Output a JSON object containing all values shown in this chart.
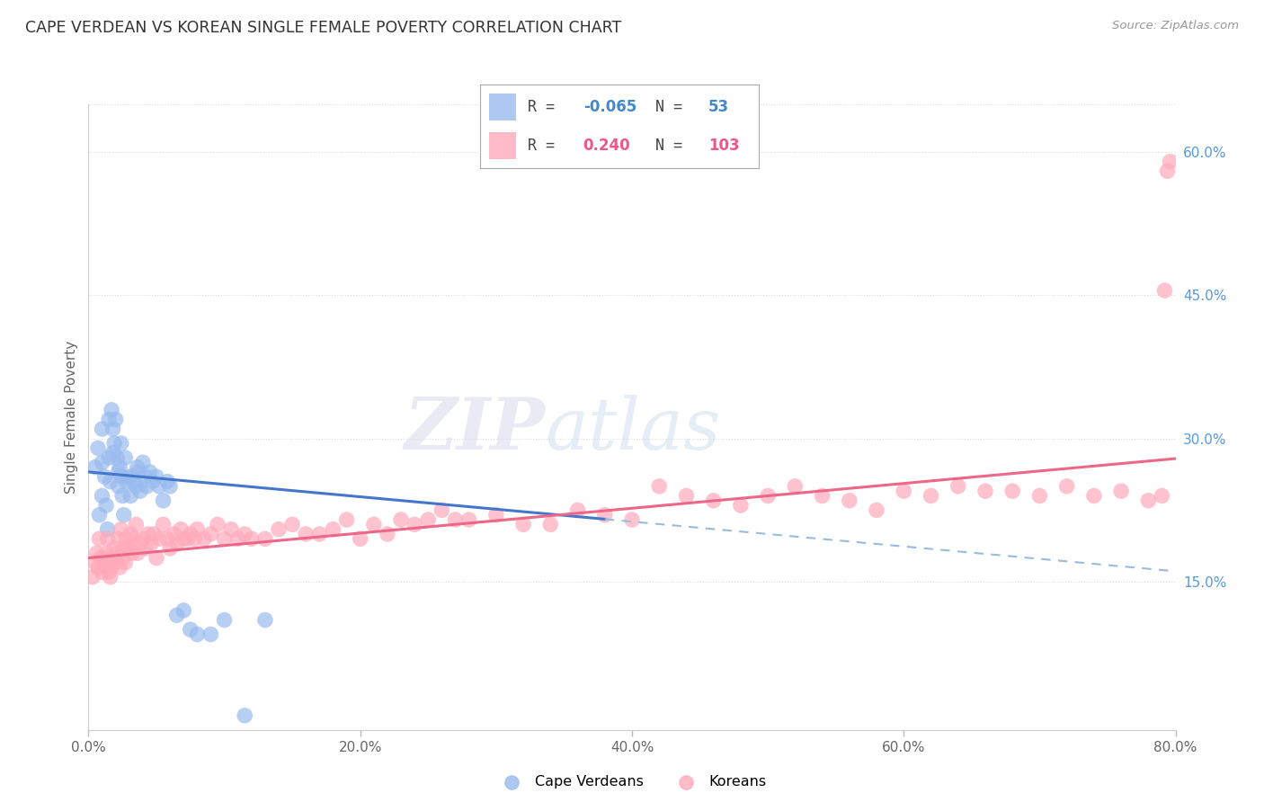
{
  "title": "CAPE VERDEAN VS KOREAN SINGLE FEMALE POVERTY CORRELATION CHART",
  "source": "Source: ZipAtlas.com",
  "ylabel": "Single Female Poverty",
  "xlim": [
    0.0,
    0.8
  ],
  "ylim": [
    -0.005,
    0.65
  ],
  "xticks": [
    0.0,
    0.2,
    0.4,
    0.6,
    0.8
  ],
  "xtick_labels": [
    "0.0%",
    "20.0%",
    "40.0%",
    "60.0%",
    "80.0%"
  ],
  "yticks_right": [
    0.15,
    0.3,
    0.45,
    0.6
  ],
  "ytick_right_labels": [
    "15.0%",
    "30.0%",
    "45.0%",
    "60.0%"
  ],
  "blue_color": "#99BBEE",
  "pink_color": "#FFAABB",
  "trend_blue_solid": "#4477CC",
  "trend_blue_dash": "#99BBDD",
  "trend_pink": "#EE6688",
  "watermark_zip": "ZIP",
  "watermark_atlas": "atlas",
  "cape_verdean_x": [
    0.005,
    0.007,
    0.008,
    0.01,
    0.01,
    0.01,
    0.012,
    0.013,
    0.014,
    0.015,
    0.015,
    0.016,
    0.017,
    0.018,
    0.018,
    0.019,
    0.02,
    0.021,
    0.022,
    0.022,
    0.023,
    0.024,
    0.025,
    0.025,
    0.026,
    0.027,
    0.028,
    0.03,
    0.031,
    0.032,
    0.033,
    0.035,
    0.036,
    0.037,
    0.038,
    0.04,
    0.042,
    0.043,
    0.045,
    0.047,
    0.05,
    0.052,
    0.055,
    0.058,
    0.06,
    0.065,
    0.07,
    0.075,
    0.08,
    0.09,
    0.1,
    0.115,
    0.13
  ],
  "cape_verdean_y": [
    0.27,
    0.29,
    0.22,
    0.24,
    0.31,
    0.275,
    0.26,
    0.23,
    0.205,
    0.32,
    0.28,
    0.255,
    0.33,
    0.285,
    0.31,
    0.295,
    0.32,
    0.28,
    0.265,
    0.25,
    0.27,
    0.295,
    0.26,
    0.24,
    0.22,
    0.28,
    0.255,
    0.26,
    0.24,
    0.26,
    0.255,
    0.25,
    0.27,
    0.265,
    0.245,
    0.275,
    0.26,
    0.25,
    0.265,
    0.255,
    0.26,
    0.25,
    0.235,
    0.255,
    0.25,
    0.115,
    0.12,
    0.1,
    0.095,
    0.095,
    0.11,
    0.01,
    0.11
  ],
  "korean_x": [
    0.003,
    0.005,
    0.006,
    0.007,
    0.008,
    0.009,
    0.01,
    0.011,
    0.012,
    0.013,
    0.014,
    0.015,
    0.016,
    0.017,
    0.018,
    0.019,
    0.02,
    0.021,
    0.022,
    0.023,
    0.024,
    0.025,
    0.026,
    0.027,
    0.028,
    0.03,
    0.031,
    0.032,
    0.033,
    0.035,
    0.036,
    0.038,
    0.04,
    0.042,
    0.044,
    0.046,
    0.048,
    0.05,
    0.052,
    0.055,
    0.058,
    0.06,
    0.063,
    0.065,
    0.068,
    0.07,
    0.073,
    0.075,
    0.078,
    0.08,
    0.085,
    0.09,
    0.095,
    0.1,
    0.105,
    0.11,
    0.115,
    0.12,
    0.13,
    0.14,
    0.15,
    0.16,
    0.17,
    0.18,
    0.19,
    0.2,
    0.21,
    0.22,
    0.23,
    0.24,
    0.25,
    0.26,
    0.27,
    0.28,
    0.3,
    0.32,
    0.34,
    0.36,
    0.38,
    0.4,
    0.42,
    0.44,
    0.46,
    0.48,
    0.5,
    0.52,
    0.54,
    0.56,
    0.58,
    0.6,
    0.62,
    0.64,
    0.66,
    0.68,
    0.7,
    0.72,
    0.74,
    0.76,
    0.78,
    0.79,
    0.792,
    0.794,
    0.796
  ],
  "korean_y": [
    0.155,
    0.17,
    0.18,
    0.165,
    0.195,
    0.175,
    0.16,
    0.175,
    0.165,
    0.18,
    0.195,
    0.16,
    0.155,
    0.165,
    0.175,
    0.185,
    0.17,
    0.18,
    0.195,
    0.165,
    0.205,
    0.175,
    0.185,
    0.17,
    0.195,
    0.185,
    0.2,
    0.18,
    0.195,
    0.21,
    0.18,
    0.19,
    0.195,
    0.185,
    0.2,
    0.19,
    0.2,
    0.175,
    0.195,
    0.21,
    0.195,
    0.185,
    0.2,
    0.19,
    0.205,
    0.195,
    0.195,
    0.2,
    0.195,
    0.205,
    0.195,
    0.2,
    0.21,
    0.195,
    0.205,
    0.195,
    0.2,
    0.195,
    0.195,
    0.205,
    0.21,
    0.2,
    0.2,
    0.205,
    0.215,
    0.195,
    0.21,
    0.2,
    0.215,
    0.21,
    0.215,
    0.225,
    0.215,
    0.215,
    0.22,
    0.21,
    0.21,
    0.225,
    0.22,
    0.215,
    0.25,
    0.24,
    0.235,
    0.23,
    0.24,
    0.25,
    0.24,
    0.235,
    0.225,
    0.245,
    0.24,
    0.25,
    0.245,
    0.245,
    0.24,
    0.25,
    0.24,
    0.245,
    0.235,
    0.24,
    0.455,
    0.58,
    0.59
  ]
}
